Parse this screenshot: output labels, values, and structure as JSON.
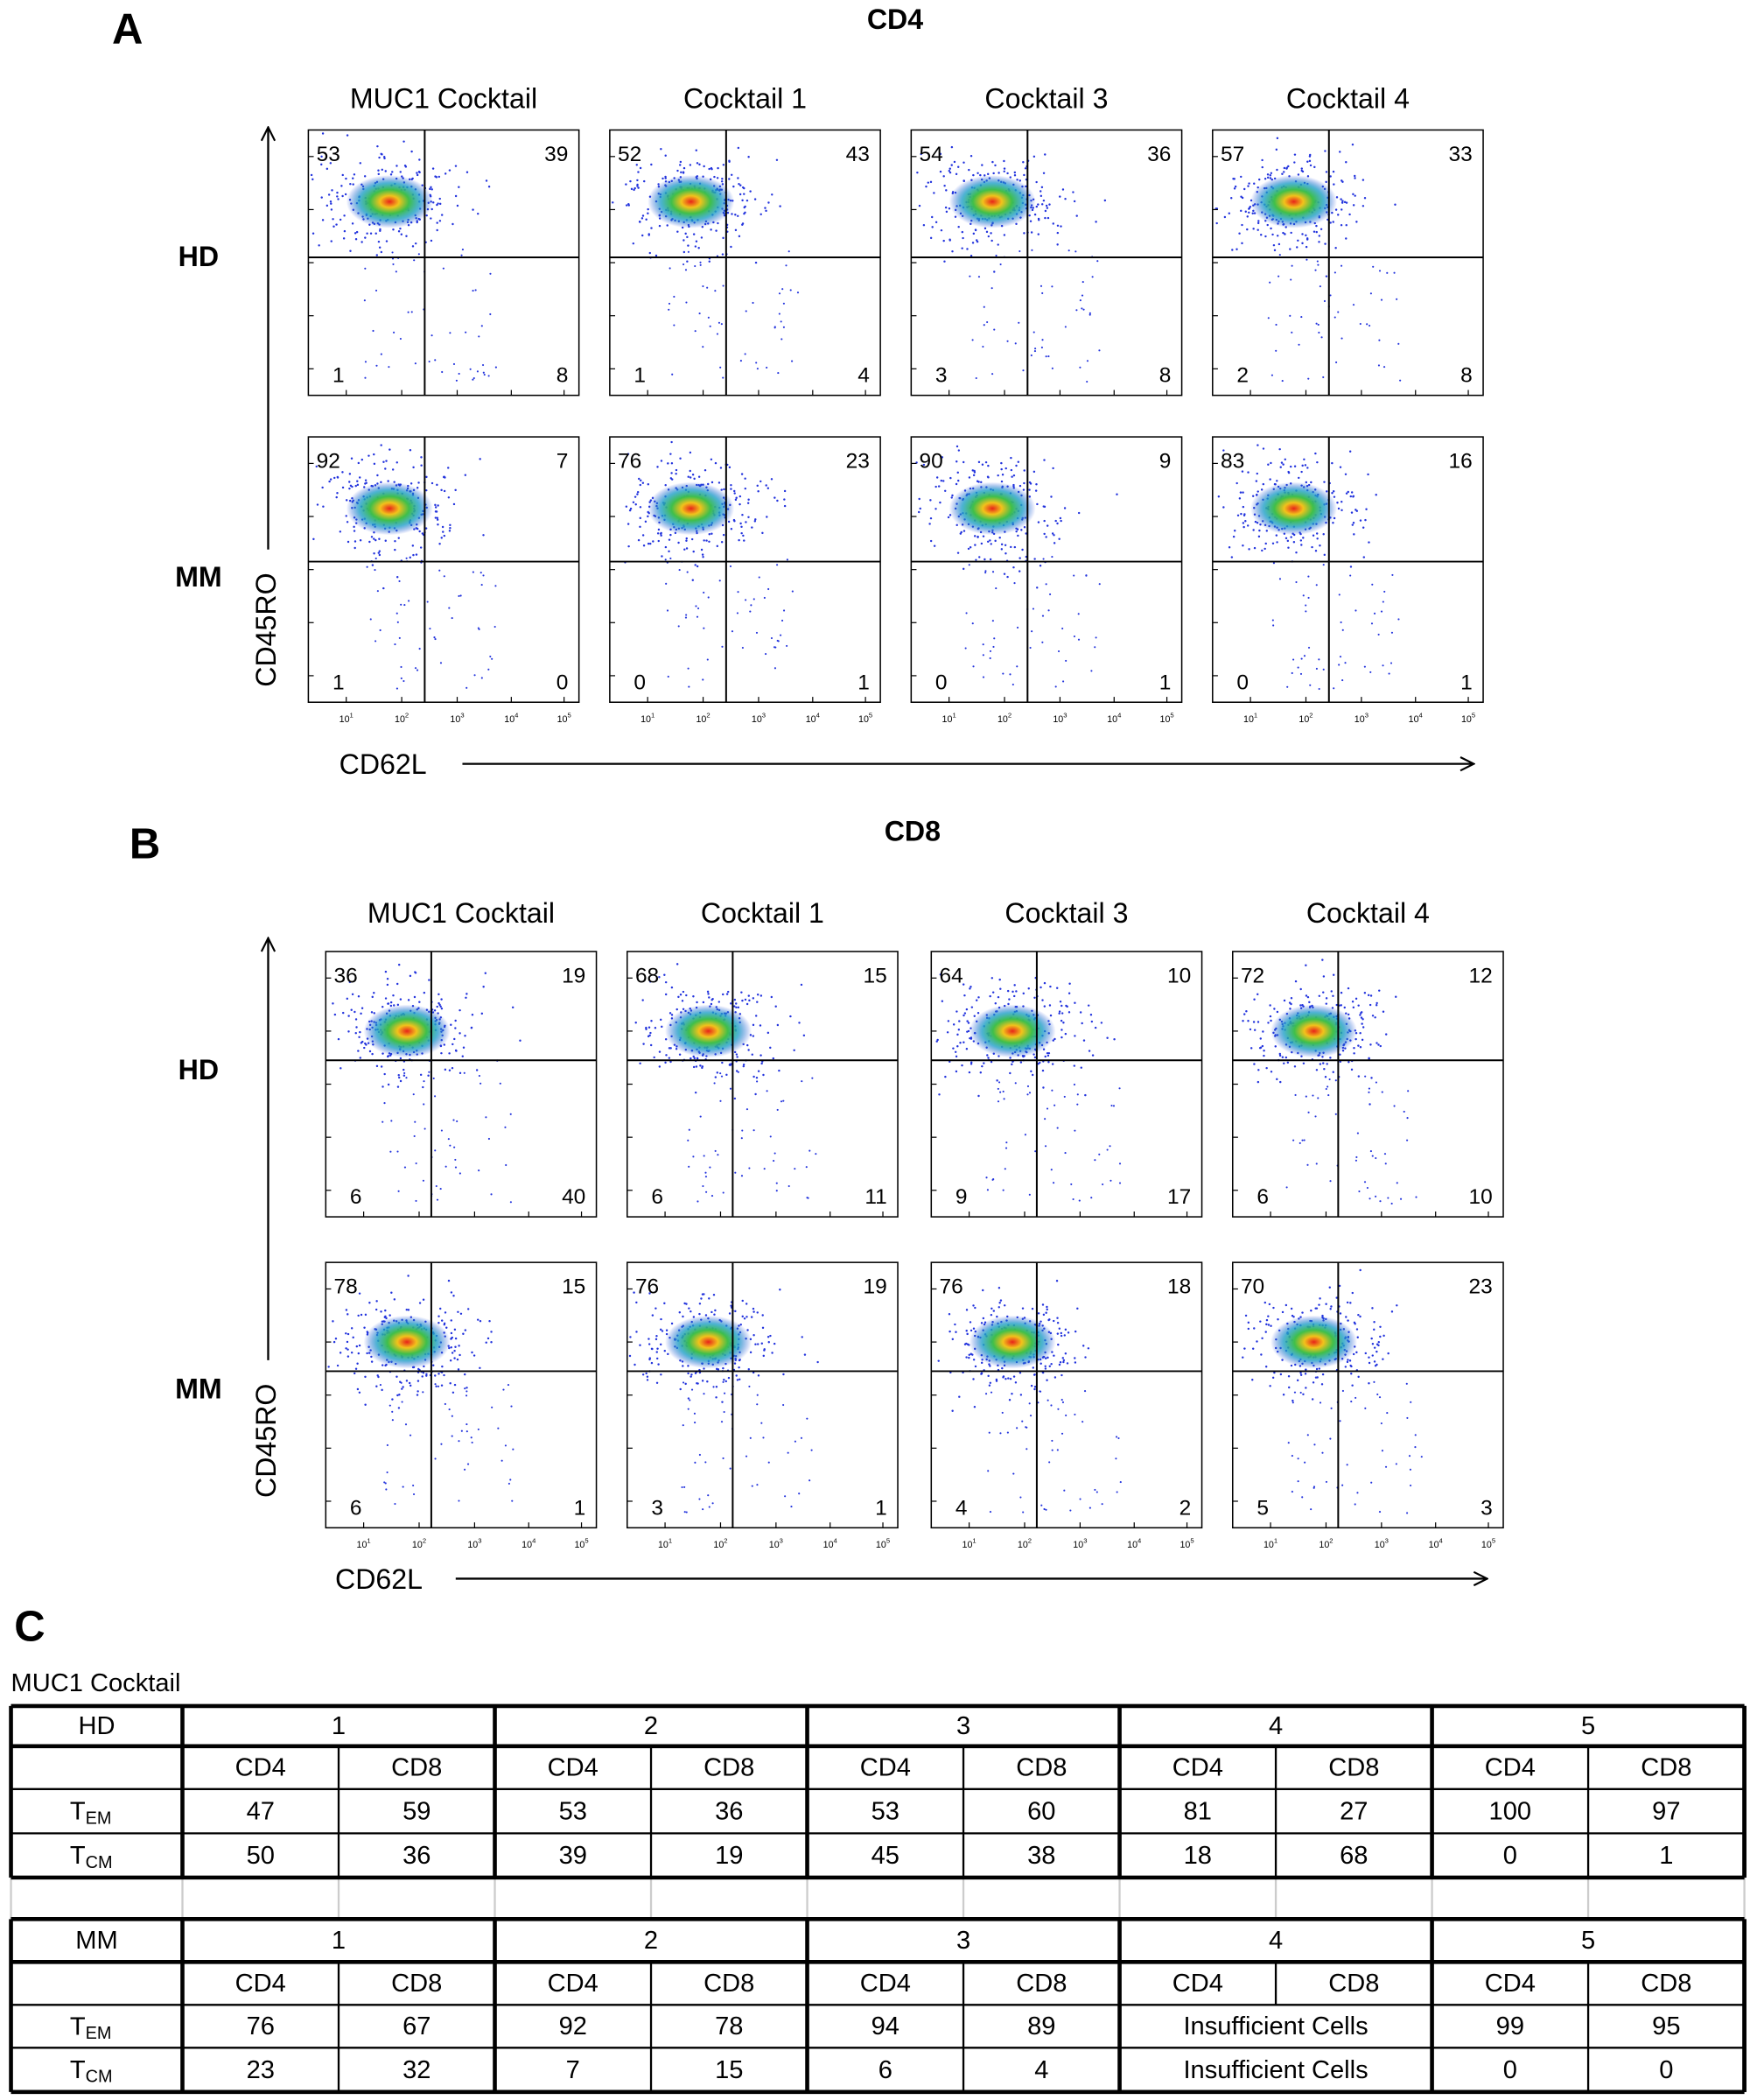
{
  "panels": [
    {
      "letter": "A",
      "title": "CD4",
      "columns": [
        "MUC1 Cocktail",
        "Cocktail 1",
        "Cocktail 3",
        "Cocktail 4"
      ],
      "rows": [
        {
          "label": "HD",
          "quadrants": [
            [
              53,
              39,
              1,
              8
            ],
            [
              52,
              43,
              1,
              4
            ],
            [
              54,
              36,
              3,
              8
            ],
            [
              57,
              33,
              2,
              8
            ]
          ]
        },
        {
          "label": "MM",
          "quadrants": [
            [
              92,
              7,
              1,
              0
            ],
            [
              76,
              23,
              0,
              1
            ],
            [
              90,
              9,
              0,
              1
            ],
            [
              83,
              16,
              0,
              1
            ]
          ]
        }
      ],
      "y_label": "CD45RO",
      "x_label": "CD62L"
    },
    {
      "letter": "B",
      "title": "CD8",
      "columns": [
        "MUC1 Cocktail",
        "Cocktail 1",
        "Cocktail 3",
        "Cocktail 4"
      ],
      "rows": [
        {
          "label": "HD",
          "quadrants": [
            [
              36,
              19,
              6,
              40
            ],
            [
              68,
              15,
              6,
              11
            ],
            [
              64,
              10,
              9,
              17
            ],
            [
              72,
              12,
              6,
              10
            ]
          ]
        },
        {
          "label": "MM",
          "quadrants": [
            [
              78,
              15,
              6,
              1
            ],
            [
              76,
              19,
              3,
              1
            ],
            [
              76,
              18,
              4,
              2
            ],
            [
              70,
              23,
              5,
              3
            ]
          ]
        }
      ],
      "y_label": "CD45RO",
      "x_label": "CD62L"
    }
  ],
  "tick_base": "10",
  "tick_exponents": [
    "1",
    "2",
    "3",
    "4",
    "5"
  ],
  "table": {
    "letter": "C",
    "caption": "MUC1 Cocktail",
    "blocks": [
      {
        "group": "HD",
        "donors": [
          "1",
          "2",
          "3",
          "4",
          "5"
        ],
        "subsets": [
          "CD4",
          "CD8"
        ],
        "rows": [
          {
            "label": "T",
            "sub": "EM",
            "values": [
              47,
              59,
              53,
              36,
              53,
              60,
              81,
              27,
              100,
              97
            ]
          },
          {
            "label": "T",
            "sub": "CM",
            "values": [
              50,
              36,
              39,
              19,
              45,
              38,
              18,
              68,
              0,
              1
            ]
          }
        ]
      },
      {
        "group": "MM",
        "donors": [
          "1",
          "2",
          "3",
          "4",
          "5"
        ],
        "subsets": [
          "CD4",
          "CD8"
        ],
        "rows": [
          {
            "label": "T",
            "sub": "EM",
            "values": [
              76,
              67,
              92,
              78,
              94,
              89,
              "Insufficient Cells",
              99,
              95
            ]
          },
          {
            "label": "T",
            "sub": "CM",
            "values": [
              23,
              32,
              7,
              15,
              6,
              4,
              "Insufficient Cells",
              0,
              0
            ]
          }
        ]
      }
    ]
  }
}
